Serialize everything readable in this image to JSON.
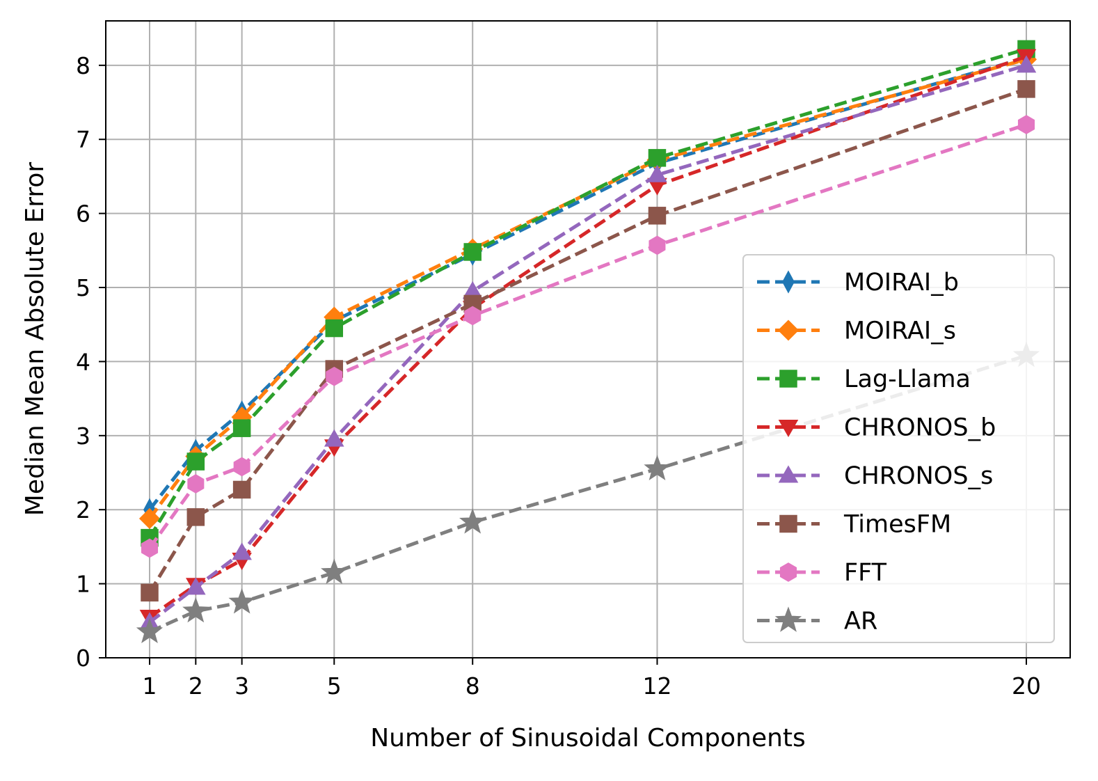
{
  "chart_data": {
    "type": "line",
    "title": "",
    "xlabel": "Number of Sinusoidal Components",
    "ylabel": "Median Mean Absolute Error",
    "x": [
      1,
      2,
      3,
      5,
      8,
      12,
      20
    ],
    "x_ticks": [
      "1",
      "2",
      "3",
      "5",
      "8",
      "12",
      "20"
    ],
    "y_ticks": [
      "0",
      "1",
      "2",
      "3",
      "4",
      "5",
      "6",
      "7",
      "8"
    ],
    "xlim": [
      0.05,
      20.95
    ],
    "ylim": [
      0,
      8.6
    ],
    "grid": true,
    "legend_position": "lower-right",
    "series": [
      {
        "name": "MOIRAI_b",
        "color": "#1f77b4",
        "marker": "thin-diamond",
        "values": [
          2.0,
          2.8,
          3.32,
          4.55,
          5.45,
          6.68,
          8.1
        ]
      },
      {
        "name": "MOIRAI_s",
        "color": "#ff7f0e",
        "marker": "diamond",
        "values": [
          1.88,
          2.72,
          3.25,
          4.6,
          5.52,
          6.72,
          8.08
        ]
      },
      {
        "name": "Lag-Llama",
        "color": "#2ca02c",
        "marker": "square",
        "values": [
          1.62,
          2.65,
          3.1,
          4.45,
          5.48,
          6.75,
          8.22
        ]
      },
      {
        "name": "CHRONOS_b",
        "color": "#d62728",
        "marker": "triangle-down",
        "values": [
          0.55,
          0.98,
          1.32,
          2.85,
          4.72,
          6.38,
          8.12
        ]
      },
      {
        "name": "CHRONOS_s",
        "color": "#9467bd",
        "marker": "triangle-up",
        "values": [
          0.48,
          0.95,
          1.42,
          2.95,
          4.95,
          6.52,
          8.0
        ]
      },
      {
        "name": "TimesFM",
        "color": "#8c564b",
        "marker": "square",
        "values": [
          0.88,
          1.9,
          2.27,
          3.9,
          4.78,
          5.97,
          7.68
        ]
      },
      {
        "name": "FFT",
        "color": "#e377c2",
        "marker": "hexagon",
        "values": [
          1.48,
          2.35,
          2.58,
          3.8,
          4.62,
          5.57,
          7.2
        ]
      },
      {
        "name": "AR",
        "color": "#7f7f7f",
        "marker": "star",
        "values": [
          0.35,
          0.63,
          0.75,
          1.15,
          1.83,
          2.55,
          4.08
        ]
      }
    ]
  }
}
